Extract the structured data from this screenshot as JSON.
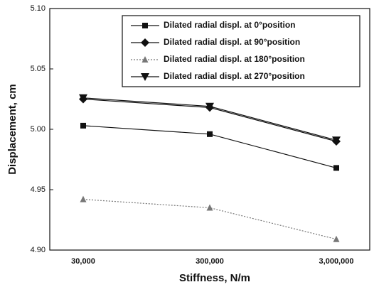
{
  "chart_data": {
    "type": "line",
    "xlabel": "Stiffness, N/m",
    "ylabel": "Displacement, cm",
    "categories": [
      "30,000",
      "300,000",
      "3,000,000"
    ],
    "series": [
      {
        "name": "Dilated radial displ. at 0°position",
        "color": "#111111",
        "marker": "square",
        "linestyle": "solid",
        "values": [
          5.003,
          4.996,
          4.968
        ]
      },
      {
        "name": "Dilated radial displ. at 90°position",
        "color": "#111111",
        "marker": "diamond",
        "linestyle": "solid",
        "values": [
          5.025,
          5.018,
          4.99
        ]
      },
      {
        "name": "Dilated radial displ. at 180°position",
        "color": "#777777",
        "marker": "triangle-up",
        "linestyle": "dotted",
        "values": [
          4.942,
          4.935,
          4.909
        ]
      },
      {
        "name": "Dilated radial displ. at 270°position",
        "color": "#111111",
        "marker": "triangle-down",
        "linestyle": "solid",
        "values": [
          5.026,
          5.019,
          4.991
        ]
      }
    ],
    "ylim": [
      4.9,
      5.1
    ],
    "yticks": [
      {
        "value": 4.9,
        "label": "4.90"
      },
      4.95,
      {
        "value": 5,
        "label": "5.00"
      },
      5.05,
      {
        "value": 5.1,
        "label": "5.10"
      }
    ],
    "legend": "upper right",
    "grid": false
  }
}
